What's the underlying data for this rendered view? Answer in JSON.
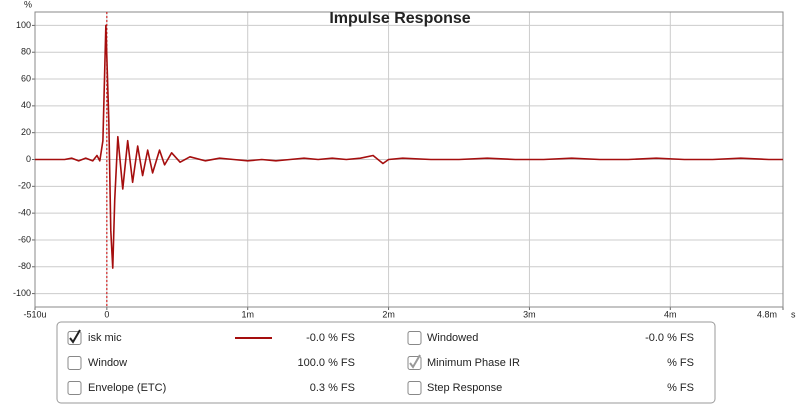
{
  "chart_data": {
    "type": "line",
    "title": "Impulse Response",
    "y_label": "%",
    "x_label": "s",
    "xlim": [
      -0.00051,
      0.0048
    ],
    "xticks": [
      {
        "value": -0.00051,
        "label": "-510u"
      },
      0,
      {
        "value": 0.001,
        "label": "1m"
      },
      {
        "value": 0.002,
        "label": "2m"
      },
      {
        "value": 0.003,
        "label": "3m"
      },
      {
        "value": 0.004,
        "label": "4m"
      },
      {
        "value": 0.0048,
        "label": "4.8m"
      }
    ],
    "ylim": [
      -110,
      110
    ],
    "yticks": [
      -100,
      -80,
      -60,
      -40,
      -20,
      0,
      20,
      40,
      60,
      80,
      100
    ],
    "grid": true,
    "vline": 0,
    "x": [
      -0.00051,
      -0.0004,
      -0.0003,
      -0.00025,
      -0.0002,
      -0.00015,
      -0.0001,
      -7e-05,
      -5e-05,
      -2.8e-05,
      -7e-06,
      1.4e-05,
      2.8e-05,
      4.2e-05,
      5.6e-05,
      7.8e-05,
      0.000113,
      0.000148,
      0.000183,
      0.000219,
      0.000254,
      0.00029,
      0.000325,
      0.000374,
      0.00041,
      0.00046,
      0.00052,
      0.00059,
      0.0007,
      0.0008,
      0.0009,
      0.001,
      0.0011,
      0.0012,
      0.0013,
      0.0014,
      0.0015,
      0.0016,
      0.0017,
      0.0018,
      0.00189,
      0.00196,
      0.002,
      0.0021,
      0.0023,
      0.0025,
      0.0027,
      0.0029,
      0.0031,
      0.0033,
      0.0035,
      0.0037,
      0.0039,
      0.0041,
      0.0043,
      0.0045,
      0.0047,
      0.0048
    ],
    "series": [
      {
        "name": "isk mic",
        "color": "#a50e0e",
        "readout": "-0.0 % FS",
        "checked": true,
        "values": [
          0,
          0,
          0,
          1,
          -1,
          1,
          -1,
          3,
          -1,
          14,
          100,
          29,
          -53,
          -81,
          -30,
          17,
          -22,
          14,
          -17,
          10,
          -12,
          7,
          -10,
          7,
          -4,
          5,
          -2,
          2,
          -1,
          1,
          0,
          -1,
          0,
          -1,
          0,
          1,
          0,
          1,
          0,
          1,
          3,
          -3,
          0,
          1,
          0,
          0,
          1,
          0,
          0,
          1,
          0,
          0,
          1,
          0,
          0,
          1,
          0,
          0
        ]
      }
    ]
  },
  "panel": {
    "items": [
      {
        "label": "Windowed",
        "value": "-0.0 % FS",
        "checked": false,
        "color": "#cc0000"
      },
      {
        "label": "Window",
        "value": "100.0 % FS",
        "checked": false,
        "color": "#0000b0"
      },
      {
        "label": "Minimum Phase IR",
        "value": "% FS",
        "checked": true,
        "color": "#888888"
      },
      {
        "label": "Envelope (ETC)",
        "value": "0.3 % FS",
        "checked": false,
        "color": "#8a1010"
      },
      {
        "label": "Step Response",
        "value": "% FS",
        "checked": false,
        "color": "#8a1010"
      }
    ]
  }
}
